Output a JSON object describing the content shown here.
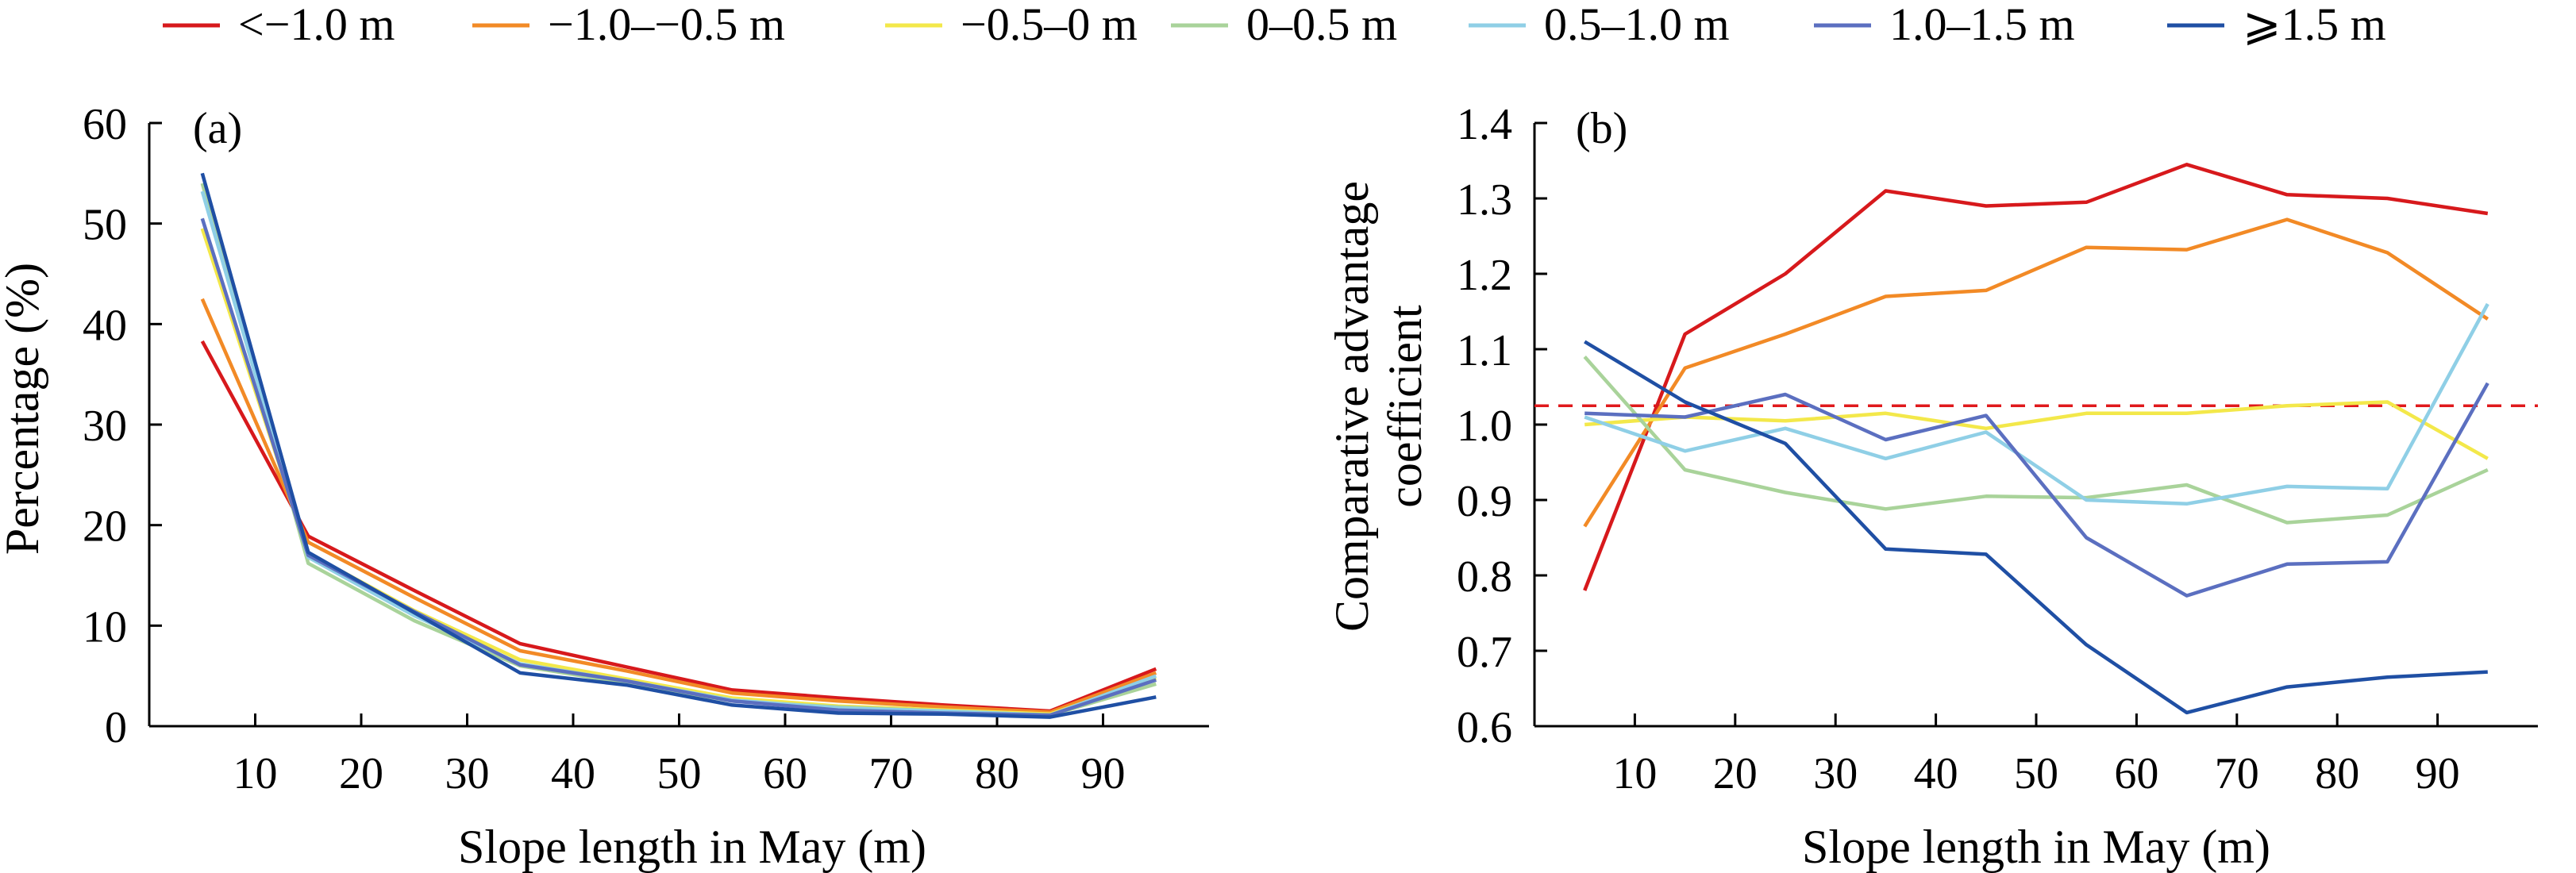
{
  "colors": {
    "lt_m1_0": "#d7191c",
    "m1_0_m0_5": "#f28a26",
    "m0_5_0": "#f3e84a",
    "0_0_5": "#a9d39a",
    "0_5_1_0": "#8fcfe6",
    "1_0_1_5": "#5b6fc0",
    "ge_1_5": "#1f4fa4",
    "reference_line": "#e0191c"
  },
  "legend": {
    "items": [
      {
        "label": "<−1.0 m",
        "color": "#d7191c"
      },
      {
        "label": "−1.0–−0.5 m",
        "color": "#f28a26"
      },
      {
        "label": "−0.5–0 m",
        "color": "#f3e84a"
      },
      {
        "label": "0–0.5 m",
        "color": "#a9d39a"
      },
      {
        "label": "0.5–1.0 m",
        "color": "#8fcfe6"
      },
      {
        "label": "1.0–1.5 m",
        "color": "#5b6fc0"
      },
      {
        "label": "⩾1.5 m",
        "color": "#1f4fa4"
      }
    ]
  },
  "chart_data": [
    {
      "type": "line",
      "panel_label": "(a)",
      "xlabel": "Slope length in May (m)",
      "ylabel": "Percentage (%)",
      "xlim": [
        0,
        100
      ],
      "ylim": [
        0,
        60
      ],
      "xticks": [
        10,
        20,
        30,
        40,
        50,
        60,
        70,
        80,
        90
      ],
      "yticks": [
        0,
        10,
        20,
        30,
        40,
        50,
        60
      ],
      "grid": false,
      "x": [
        5,
        15,
        25,
        35,
        45,
        55,
        65,
        75,
        85,
        95
      ],
      "series": [
        {
          "name": "<−1.0 m",
          "color": "#d7191c",
          "values": [
            38.3,
            18.9,
            13.5,
            8.2,
            5.9,
            3.6,
            2.8,
            2.1,
            1.5,
            5.7
          ]
        },
        {
          "name": "−1.0–−0.5 m",
          "color": "#f28a26",
          "values": [
            42.5,
            18.3,
            12.8,
            7.5,
            5.5,
            3.3,
            2.5,
            1.9,
            1.4,
            5.3
          ]
        },
        {
          "name": "−0.5–0 m",
          "color": "#f3e84a",
          "values": [
            49.5,
            17.2,
            11.5,
            6.6,
            4.7,
            2.8,
            2.0,
            1.6,
            1.2,
            4.8
          ]
        },
        {
          "name": "0–0.5 m",
          "color": "#a9d39a",
          "values": [
            54.0,
            16.2,
            10.5,
            6.0,
            4.3,
            2.5,
            1.9,
            1.5,
            1.1,
            4.2
          ]
        },
        {
          "name": "0.5–1.0 m",
          "color": "#8fcfe6",
          "values": [
            53.2,
            16.8,
            11.0,
            6.2,
            4.5,
            2.6,
            1.8,
            1.5,
            1.1,
            5.0
          ]
        },
        {
          "name": "1.0–1.5 m",
          "color": "#5b6fc0",
          "values": [
            50.5,
            17.0,
            11.4,
            6.1,
            4.5,
            2.5,
            1.6,
            1.3,
            1.1,
            4.6
          ]
        },
        {
          "name": "⩾1.5 m",
          "color": "#1f4fa4",
          "values": [
            55.0,
            17.3,
            11.3,
            5.3,
            4.1,
            2.1,
            1.3,
            1.2,
            0.9,
            2.9
          ]
        }
      ]
    },
    {
      "type": "line",
      "panel_label": "(b)",
      "xlabel": "Slope length in May (m)",
      "ylabel_lines": [
        "Comparative advantage",
        "coefficient"
      ],
      "xlim": [
        0,
        100
      ],
      "ylim": [
        0.6,
        1.4
      ],
      "xticks": [
        10,
        20,
        30,
        40,
        50,
        60,
        70,
        80,
        90
      ],
      "yticks": [
        "0.6",
        "0.7",
        "0.8",
        "0.9",
        "1.0",
        "1.1",
        "1.2",
        "1.3",
        "1.4"
      ],
      "grid": false,
      "reference_line": {
        "y": 1.025,
        "style": "dashed",
        "color": "#e0191c"
      },
      "x": [
        5,
        15,
        25,
        35,
        45,
        55,
        65,
        75,
        85,
        95
      ],
      "series": [
        {
          "name": "<−1.0 m",
          "color": "#d7191c",
          "values": [
            0.78,
            1.12,
            1.2,
            1.31,
            1.29,
            1.295,
            1.345,
            1.305,
            1.3,
            1.28
          ]
        },
        {
          "name": "−1.0–−0.5 m",
          "color": "#f28a26",
          "values": [
            0.865,
            1.075,
            1.12,
            1.17,
            1.178,
            1.235,
            1.232,
            1.272,
            1.228,
            1.14
          ]
        },
        {
          "name": "−0.5–0 m",
          "color": "#f3e84a",
          "values": [
            1.0,
            1.01,
            1.005,
            1.015,
            0.995,
            1.015,
            1.015,
            1.025,
            1.03,
            0.955
          ]
        },
        {
          "name": "0–0.5 m",
          "color": "#a9d39a",
          "values": [
            1.09,
            0.94,
            0.91,
            0.888,
            0.905,
            0.903,
            0.92,
            0.87,
            0.88,
            0.94
          ]
        },
        {
          "name": "0.5–1.0 m",
          "color": "#8fcfe6",
          "values": [
            1.01,
            0.965,
            0.995,
            0.955,
            0.99,
            0.9,
            0.895,
            0.918,
            0.915,
            1.16
          ]
        },
        {
          "name": "1.0–1.5 m",
          "color": "#5b6fc0",
          "values": [
            1.015,
            1.01,
            1.04,
            0.98,
            1.012,
            0.85,
            0.773,
            0.815,
            0.818,
            1.055
          ]
        },
        {
          "name": "⩾1.5 m",
          "color": "#1f4fa4",
          "values": [
            1.11,
            1.03,
            0.975,
            0.835,
            0.828,
            0.708,
            0.618,
            0.652,
            0.665,
            0.672
          ]
        }
      ]
    }
  ]
}
